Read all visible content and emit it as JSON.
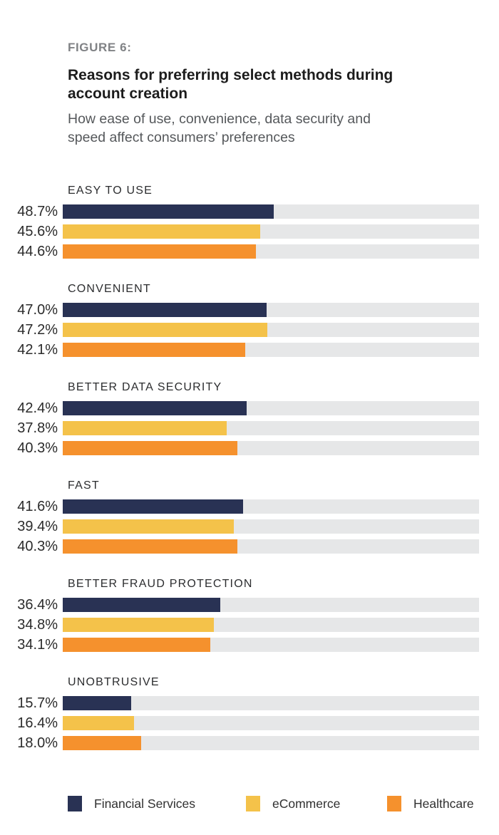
{
  "figure_label": "FIGURE 6:",
  "title": "Reasons for preferring select methods during account creation",
  "subtitle": "How ease of use, convenience, data security and speed affect consumers’ preferences",
  "colors": {
    "financial_services": "#293254",
    "ecommerce": "#f4c24a",
    "healthcare": "#f5912d",
    "bar_track": "#e6e7e8",
    "figure_label_gray": "#808285",
    "subtitle_gray": "#55585b"
  },
  "chart_data": {
    "type": "bar",
    "orientation": "horizontal",
    "title": "Reasons for preferring select methods during account creation",
    "subtitle": "How ease of use, convenience, data security and speed affect consumers’ preferences",
    "categories": [
      "EASY TO USE",
      "CONVENIENT",
      "BETTER DATA SECURITY",
      "FAST",
      "BETTER FRAUD PROTECTION",
      "UNOBTRUSIVE"
    ],
    "series": [
      {
        "name": "Financial Services",
        "color": "#293254",
        "values": [
          48.7,
          47.0,
          42.4,
          41.6,
          36.4,
          15.7
        ]
      },
      {
        "name": "eCommerce",
        "color": "#f4c24a",
        "values": [
          45.6,
          47.2,
          37.8,
          39.4,
          34.8,
          16.4
        ]
      },
      {
        "name": "Healthcare",
        "color": "#f5912d",
        "values": [
          44.6,
          42.1,
          40.3,
          40.3,
          34.1,
          18.0
        ]
      }
    ],
    "value_suffix": "%",
    "value_labels": [
      [
        "48.7%",
        "47.0%",
        "42.4%",
        "41.6%",
        "36.4%",
        "15.7%"
      ],
      [
        "45.6%",
        "47.2%",
        "37.8%",
        "39.4%",
        "34.8%",
        "16.4%"
      ],
      [
        "44.6%",
        "42.1%",
        "40.3%",
        "40.3%",
        "34.1%",
        "18.0%"
      ]
    ],
    "xlim": [
      0,
      100
    ],
    "grid": false,
    "legend_position": "bottom"
  }
}
